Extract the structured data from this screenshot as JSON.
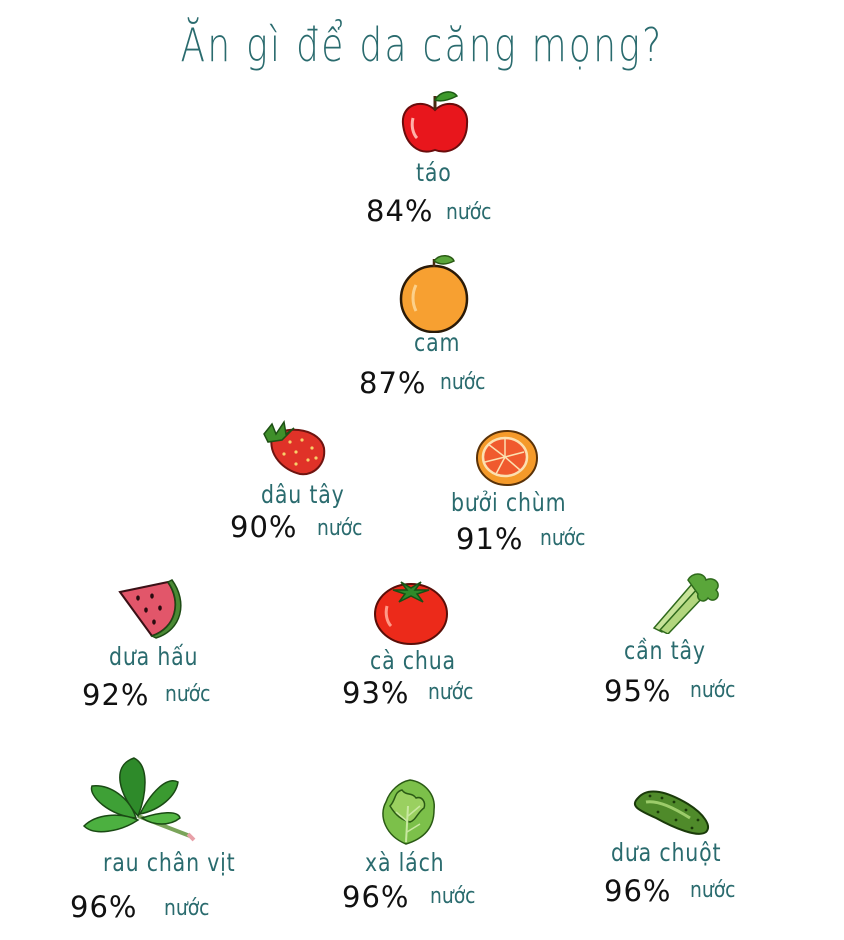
{
  "title": "Ăn gì để da căng mọng?",
  "water_label": "nước",
  "colors": {
    "teal": "#2a6b6e",
    "black": "#111111"
  },
  "items": [
    {
      "icon": "apple-icon",
      "name": "táo",
      "percent": "84%"
    },
    {
      "icon": "orange-icon",
      "name": "cam",
      "percent": "87%"
    },
    {
      "icon": "strawberry-icon",
      "name": "dâu tây",
      "percent": "90%"
    },
    {
      "icon": "grapefruit-icon",
      "name": "bưởi chùm",
      "percent": "91%"
    },
    {
      "icon": "watermelon-icon",
      "name": "dưa hấu",
      "percent": "92%"
    },
    {
      "icon": "tomato-icon",
      "name": "cà chua",
      "percent": "93%"
    },
    {
      "icon": "celery-icon",
      "name": "cần tây",
      "percent": "95%"
    },
    {
      "icon": "spinach-icon",
      "name": "rau chân vịt",
      "percent": "96%"
    },
    {
      "icon": "lettuce-icon",
      "name": "xà lách",
      "percent": "96%"
    },
    {
      "icon": "cucumber-icon",
      "name": "dưa chuột",
      "percent": "96%"
    }
  ]
}
